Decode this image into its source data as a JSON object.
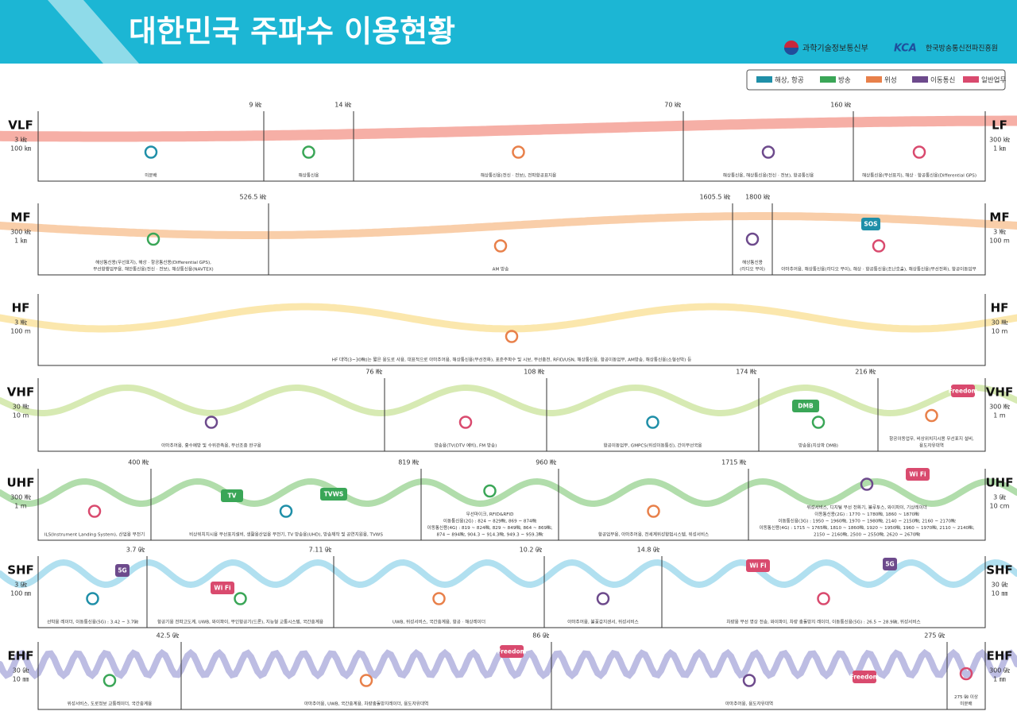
{
  "header": {
    "title": "대한민국 주파수 이용현황",
    "ministry": "과학기술정보통신부",
    "agency_mark": "KCA",
    "agency": "한국방송통신전파진흥원"
  },
  "legend": [
    "해상, 항공",
    "방송",
    "위성",
    "이동통신",
    "일반업무"
  ],
  "bands": [
    {
      "name": "VLF",
      "low": [
        "3 ㎑",
        "100 ㎞"
      ],
      "high_name": "LF",
      "high": [
        "300 ㎑",
        "1 ㎞"
      ],
      "boundaries": [
        "9 ㎑",
        "14 ㎑",
        "70 ㎑",
        "160 ㎑"
      ],
      "segments": [
        [
          "미분배"
        ],
        [
          "해상통신용"
        ],
        [
          "해상통신용(전신 · 전보), 전파항공표지용"
        ],
        [
          "해상통신용, 해상통신용(전신 · 전보), 항공통신용"
        ],
        [
          "해상통신용(무선표지), 해상 · 항공통신용(Differential GPS)"
        ]
      ],
      "badges": []
    },
    {
      "name": "MF",
      "low": [
        "300 ㎑",
        "1 ㎞"
      ],
      "high_name": "MF",
      "high": [
        "3 ㎒",
        "100 m"
      ],
      "boundaries": [
        "526.5 ㎑",
        "1605.5 ㎑",
        "1800 ㎑"
      ],
      "segments": [
        [
          "해상통신용(무선표지), 해상 · 항공통신용(Differential GPS),",
          "무선항행업무용, 해안통신용(전신 · 전보), 해상통신용(NAVTEX)"
        ],
        [
          "AM 방송"
        ],
        [
          "해상통신용",
          "(라디오 부이)"
        ],
        [
          "아마추어용, 해상통신용(라디오 부이), 해상 · 항공통신용(조난호출), 해상통신용(무선전화), 항공이동업무"
        ]
      ],
      "badges": [
        "SOS"
      ]
    },
    {
      "name": "HF",
      "low": [
        "3 ㎒",
        "100 m"
      ],
      "high_name": "HF",
      "high": [
        "30 ㎒",
        "10 m"
      ],
      "boundaries": [],
      "segments": [
        [
          "HF 대역(3~30㎒)는 짧은 용도로 사용, 대표적으로 아마추어용, 해상통신용(무선전화), 표준주파수 및 시보, 무선충전, RFID/USN, 해상통신용, 항공이동업무, AM방송, 해상통신용(소형선박) 등"
        ]
      ],
      "badges": []
    },
    {
      "name": "VHF",
      "low": [
        "30 ㎒",
        "10 m"
      ],
      "high_name": "VHF",
      "high": [
        "300 ㎒",
        "1 m"
      ],
      "boundaries": [
        "76 ㎒",
        "108 ㎒",
        "174 ㎒",
        "216 ㎒"
      ],
      "segments": [
        [
          "아마추어용, 홍수예방 및 수위관측용, 무선조종 완구용"
        ],
        [
          "방송용(TV(DTV 예비), FM 방송)"
        ],
        [
          "항공이동업무, GMPCS(위성이동통신), 간이무선국용"
        ],
        [
          "방송용(지상파 DMB)"
        ],
        [
          "항공이동업무, 비상위치지시용 무선표지 설비,",
          "용도자유대역"
        ]
      ],
      "badges": [
        "DMB",
        "Freedom"
      ]
    },
    {
      "name": "UHF",
      "low": [
        "300 ㎒",
        "1 m"
      ],
      "high_name": "UHF",
      "high": [
        "3 ㎓",
        "10 cm"
      ],
      "boundaries": [
        "400 ㎒",
        "819 ㎒",
        "960 ㎒",
        "1715 ㎒"
      ],
      "segments": [
        [
          "ILS(Instrument Landing System), 산업용 무전기"
        ],
        [
          "비상위치지시용 무선표지설비, 생활용산업용 무전기, TV 방송용(UHD), 방송제작 및 공연지원용, TVWS"
        ],
        [
          "무선마이크, RFID&RFID",
          "이동통신용(2G) : 824 ~ 829㎒, 869 ~ 874㎒",
          "이동통신용(4G) : 819 ~ 824㎒, 829 ~ 849㎒, 864 ~ 869㎒,",
          "874 ~ 894㎒, 904.3 ~ 914.3㎒, 949.3 ~ 959.3㎒"
        ],
        [
          "항공업무용, 아마추어용, 전세계위성항법시스템, 위성서비스"
        ],
        [
          "위성서비스, 디지털 무선 전화기, 블루투스, 와이파이, 기상레이더",
          "이동통신용(2G) : 1770 ~ 1780㎒, 1860 ~ 1870㎒",
          "이동통신용(3G) : 1950 ~ 1960㎒, 1970 ~ 1980㎒, 2140 ~ 2150㎒, 2160 ~ 2170㎒",
          "이동통신용(4G) : 1715 ~ 1765㎒, 1810 ~ 1860㎒, 1920 ~ 1950㎒, 1960 ~ 1970㎒, 2110 ~ 2140㎒,",
          "2150 ~ 2160㎒, 2500 ~ 2550㎒, 2620 ~ 2670㎒"
        ]
      ],
      "badges": [
        "TV",
        "TVWS",
        "Wi Fi"
      ]
    },
    {
      "name": "SHF",
      "low": [
        "3 ㎓",
        "100 ㎜"
      ],
      "high_name": "SHF",
      "high": [
        "30 ㎓",
        "10 ㎜"
      ],
      "boundaries": [
        "3.7 ㎓",
        "7.11 ㎓",
        "10.2 ㎓",
        "14.8 ㎓"
      ],
      "segments": [
        [
          "선박용 레이더, 이동통신용(5G) : 3.42 ~ 3.7㎓"
        ],
        [
          "항공기용 전파고도계, UWB, 와이파이, 무인항공기(드론), 지능형 교통시스템, 국간중계용"
        ],
        [
          "UWB, 위성서비스, 국간중계용, 항공 · 해상레이더"
        ],
        [
          "아마추어용, 불꽃감지센서, 위성서비스"
        ],
        [
          "차량용 무선 영상 전송, 와이파이, 차량 충돌방지 레이더, 이동통신용(5G) : 26.5 ~ 28.9㎓, 위성서비스"
        ]
      ],
      "badges": [
        "5G",
        "Wi Fi",
        "Wi Fi",
        "5G"
      ]
    },
    {
      "name": "EHF",
      "low": [
        "30 ㎓",
        "10 ㎜"
      ],
      "high_name": "EHF",
      "high": [
        "300 ㎓",
        "1 ㎜"
      ],
      "boundaries": [
        "42.5 ㎓",
        "86 ㎓",
        "275 ㎓"
      ],
      "segments": [
        [
          "위성서비스, 도로정보 교통레이더, 국간중계용"
        ],
        [
          "아마추어용, UWB, 국간중계용, 차량충돌방지레이더, 용도자유대역"
        ],
        [
          "아마추어용, 용도자유대역"
        ],
        [
          "275 ㎓ 이상",
          "미분배"
        ]
      ],
      "badges": [
        "Freedom",
        "Freedom"
      ]
    }
  ]
}
